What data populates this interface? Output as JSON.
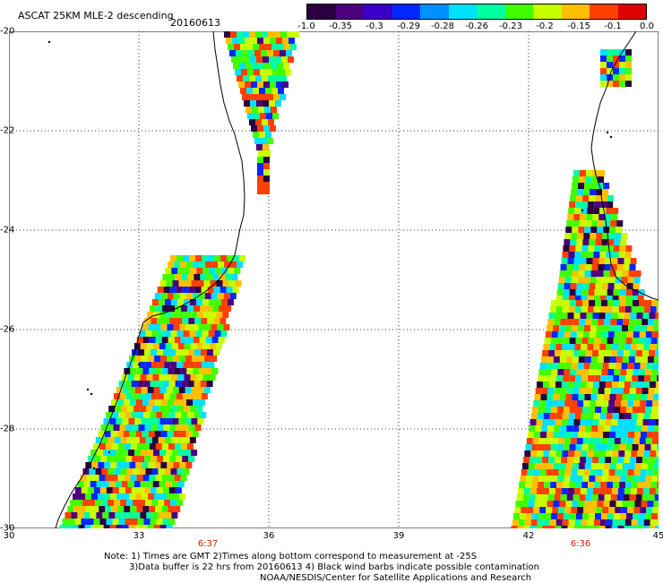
{
  "header": {
    "title": "ASCAT 25KM MLE-2 descending",
    "date": "20160613"
  },
  "colorbar": {
    "labels": [
      "-1.0",
      "-0.35",
      "-0.3",
      "-0.29",
      "-0.28",
      "-0.26",
      "-0.23",
      "-0.2",
      "-0.15",
      "-0.1",
      "0.0"
    ],
    "colors": [
      "#2a0040",
      "#4b0080",
      "#3a00c8",
      "#0028ff",
      "#0090ff",
      "#00e0ff",
      "#00ffa0",
      "#40ff00",
      "#c8ff00",
      "#ffc000",
      "#ff4000",
      "#e00000"
    ]
  },
  "axes": {
    "x_ticks": [
      "30",
      "33",
      "36",
      "39",
      "42",
      "45"
    ],
    "y_ticks": [
      "-20",
      "-22",
      "-24",
      "-26",
      "-28",
      "-30"
    ]
  },
  "pass_times": [
    "6:37",
    "6:36"
  ],
  "notes": {
    "line1": "Note: 1) Times are GMT 2)Times along bottom correspond to measurement at -25S",
    "line2": "3)Data buffer is 22 hrs from 20160613 4) Black wind barbs indicate possible contamination",
    "line3": "NOAA/NESDIS/Center for Satellite Applications and Research"
  }
}
